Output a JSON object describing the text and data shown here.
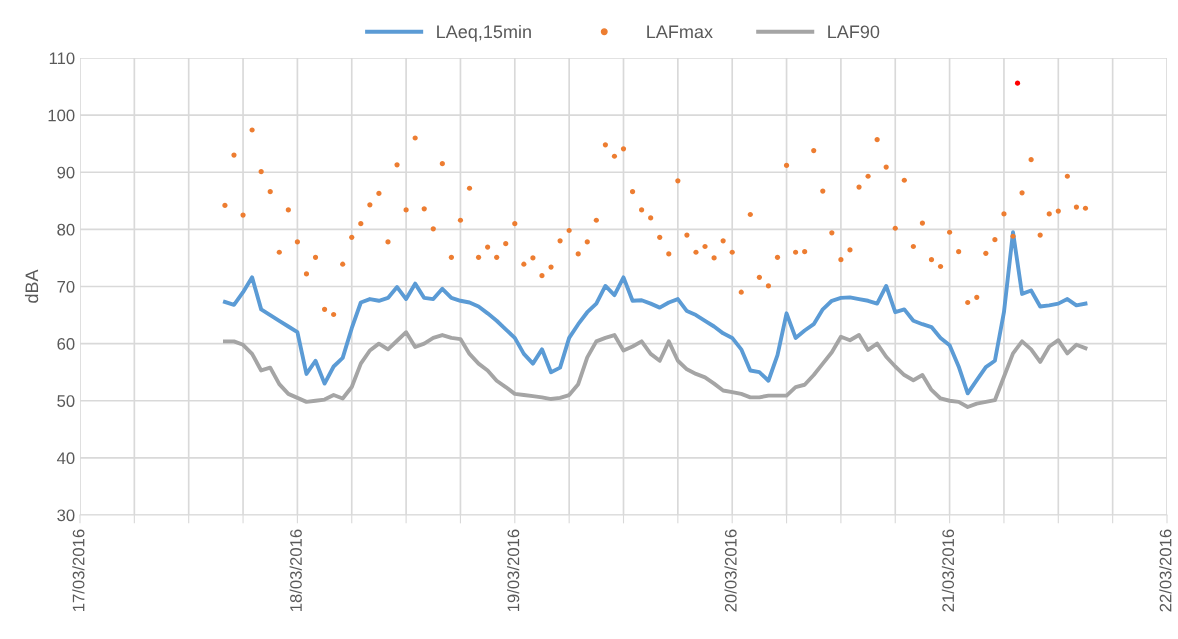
{
  "chart_data": {
    "type": "line",
    "ylabel": "dBA",
    "legend": "top",
    "grid": true,
    "x": [
      "2016-03-17T16:00",
      "2016-03-17T17:00",
      "2016-03-17T18:00",
      "2016-03-17T19:00",
      "2016-03-17T20:00",
      "2016-03-17T21:00",
      "2016-03-17T22:00",
      "2016-03-17T23:00",
      "2016-03-18T00:00",
      "2016-03-18T01:00",
      "2016-03-18T02:00",
      "2016-03-18T03:00",
      "2016-03-18T04:00",
      "2016-03-18T05:00",
      "2016-03-18T06:00",
      "2016-03-18T07:00",
      "2016-03-18T08:00",
      "2016-03-18T09:00",
      "2016-03-18T10:00",
      "2016-03-18T11:00",
      "2016-03-18T12:00",
      "2016-03-18T13:00",
      "2016-03-18T14:00",
      "2016-03-18T15:00",
      "2016-03-18T16:00",
      "2016-03-18T17:00",
      "2016-03-18T18:00",
      "2016-03-18T19:00",
      "2016-03-18T20:00",
      "2016-03-18T21:00",
      "2016-03-18T22:00",
      "2016-03-18T23:00",
      "2016-03-19T00:00",
      "2016-03-19T01:00",
      "2016-03-19T02:00",
      "2016-03-19T03:00",
      "2016-03-19T04:00",
      "2016-03-19T05:00",
      "2016-03-19T06:00",
      "2016-03-19T07:00",
      "2016-03-19T08:00",
      "2016-03-19T09:00",
      "2016-03-19T10:00",
      "2016-03-19T11:00",
      "2016-03-19T12:00",
      "2016-03-19T13:00",
      "2016-03-19T14:00",
      "2016-03-19T15:00",
      "2016-03-19T16:00",
      "2016-03-19T17:00",
      "2016-03-19T18:00",
      "2016-03-19T19:00",
      "2016-03-19T20:00",
      "2016-03-19T21:00",
      "2016-03-19T22:00",
      "2016-03-19T23:00",
      "2016-03-20T00:00",
      "2016-03-20T01:00",
      "2016-03-20T02:00",
      "2016-03-20T03:00",
      "2016-03-20T04:00",
      "2016-03-20T05:00",
      "2016-03-20T06:00",
      "2016-03-20T07:00",
      "2016-03-20T08:00",
      "2016-03-20T09:00",
      "2016-03-20T10:00",
      "2016-03-20T11:00",
      "2016-03-20T12:00",
      "2016-03-20T13:00",
      "2016-03-20T14:00",
      "2016-03-20T15:00",
      "2016-03-20T16:00",
      "2016-03-20T17:00",
      "2016-03-20T18:00",
      "2016-03-20T19:00",
      "2016-03-20T20:00",
      "2016-03-20T21:00",
      "2016-03-20T22:00",
      "2016-03-20T23:00",
      "2016-03-21T00:00",
      "2016-03-21T01:00",
      "2016-03-21T02:00",
      "2016-03-21T03:00",
      "2016-03-21T04:00",
      "2016-03-21T05:00",
      "2016-03-21T06:00",
      "2016-03-21T07:00",
      "2016-03-21T08:00",
      "2016-03-21T09:00",
      "2016-03-21T10:00",
      "2016-03-21T11:00",
      "2016-03-21T12:00",
      "2016-03-21T13:00",
      "2016-03-21T14:00",
      "2016-03-21T15:00"
    ],
    "series": [
      {
        "name": "LAeq,15min",
        "color": "#5b9bd5",
        "marker": "none",
        "line_style": "solid",
        "values": [
          67.3,
          66.8,
          69,
          71.6,
          66,
          65,
          64,
          63,
          62,
          54.7,
          57,
          53,
          56,
          57.5,
          62.7,
          67.2,
          67.8,
          67.5,
          68,
          69.9,
          67.8,
          70.5,
          68,
          67.8,
          69.6,
          68,
          67.5,
          67.2,
          66.5,
          65.3,
          64,
          62.5,
          61,
          58.2,
          56.5,
          59,
          55,
          55.8,
          61,
          63.4,
          65.5,
          67,
          70.1,
          68.5,
          71.6,
          67.5,
          67.6,
          67,
          66.3,
          67.2,
          67.8,
          65.7,
          65,
          64,
          63,
          61.8,
          61,
          59,
          55.3,
          55,
          53.5,
          58,
          65.3,
          61,
          62.3,
          63.4,
          66,
          67.5,
          68,
          68.1,
          67.8,
          67.5,
          67,
          70.1,
          65.5,
          66,
          64,
          63.4,
          62.9,
          61,
          59.7,
          56,
          51.3,
          53.6,
          55.9,
          57,
          65.5,
          79.5,
          68.7,
          69.3,
          66.5,
          66.7,
          67,
          67.8,
          66.7,
          67
        ]
      },
      {
        "name": "LAFmax",
        "type": "scatter",
        "color": "#ed7d31",
        "marker": "circle",
        "values": [
          84.2,
          93,
          82.5,
          97.4,
          90.1,
          86.6,
          76,
          83.4,
          77.8,
          72.2,
          75.1,
          66,
          65.1,
          73.9,
          78.6,
          81,
          84.3,
          86.3,
          77.8,
          91.3,
          83.4,
          96,
          83.6,
          80.1,
          91.5,
          75.1,
          81.6,
          87.2,
          75.1,
          76.9,
          75.1,
          77.5,
          81,
          73.9,
          75,
          71.9,
          73.4,
          78,
          79.8,
          75.7,
          77.8,
          81.6,
          94.8,
          92.8,
          94.1,
          86.6,
          83.4,
          82,
          78.6,
          75.7,
          88.5,
          79,
          76,
          77,
          75,
          78,
          76,
          69,
          82.6,
          71.6,
          70.1,
          75.1,
          91.2,
          76,
          76.1,
          93.8,
          86.7,
          79.4,
          74.7,
          76.4,
          87.4,
          89.3,
          95.7,
          90.9,
          80.2,
          88.6,
          77,
          81.1,
          74.7,
          73.5,
          79.5,
          76.1,
          67.2,
          68.1,
          75.8,
          78.2,
          82.7,
          78.8,
          86.4,
          92.2,
          79,
          82.7,
          83.2,
          89.3,
          83.9,
          83.7
        ]
      },
      {
        "name": "LAF90",
        "color": "#a5a5a5",
        "marker": "none",
        "line_style": "solid",
        "values": [
          60.4,
          60.4,
          59.8,
          58.2,
          55.3,
          55.8,
          52.9,
          51.2,
          50.5,
          49.8,
          50,
          50.2,
          51,
          50.4,
          52.4,
          56.5,
          58.8,
          60,
          59,
          60.5,
          62,
          59.4,
          60,
          61,
          61.5,
          61,
          60.8,
          58.2,
          56.5,
          55.3,
          53.5,
          52.4,
          51.2,
          51,
          50.8,
          50.6,
          50.3,
          50.5,
          51,
          52.9,
          57.6,
          60.4,
          61,
          61.5,
          58.8,
          59.5,
          60.4,
          58.2,
          57,
          60.4,
          57,
          55.5,
          54.7,
          54.1,
          53,
          51.8,
          51.5,
          51.2,
          50.6,
          50.6,
          50.9,
          50.9,
          50.9,
          52.4,
          52.8,
          54.5,
          56.5,
          58.5,
          61.2,
          60.6,
          61.5,
          58.9,
          60,
          57.7,
          56,
          54.5,
          53.6,
          54.5,
          51.9,
          50.4,
          50,
          49.8,
          48.9,
          49.5,
          49.8,
          50.1,
          54.2,
          58.3,
          60.4,
          59,
          56.8,
          59.5,
          60.6,
          58.3,
          59.8,
          59.2
        ]
      },
      {
        "type": "scatter",
        "color": "#ff0000",
        "marker": "circle",
        "x": [
          "2016-03-21T07:30"
        ],
        "values": [
          105.6
        ]
      }
    ],
    "xlim": [
      "2016-03-17",
      "2016-03-22"
    ],
    "xticks": [
      {
        "value": "2016-03-17",
        "label": "17/03/2016"
      },
      {
        "value": "2016-03-17T06:00",
        "label": null
      },
      {
        "value": "2016-03-17T12:00",
        "label": null
      },
      {
        "value": "2016-03-17T18:00",
        "label": null
      },
      {
        "value": "2016-03-18",
        "label": "18/03/2016"
      },
      {
        "value": "2016-03-18T06:00",
        "label": null
      },
      {
        "value": "2016-03-18T12:00",
        "label": null
      },
      {
        "value": "2016-03-18T18:00",
        "label": null
      },
      {
        "value": "2016-03-19",
        "label": "19/03/2016"
      },
      {
        "value": "2016-03-19T06:00",
        "label": null
      },
      {
        "value": "2016-03-19T12:00",
        "label": null
      },
      {
        "value": "2016-03-19T18:00",
        "label": null
      },
      {
        "value": "2016-03-20",
        "label": "20/03/2016"
      },
      {
        "value": "2016-03-20T06:00",
        "label": null
      },
      {
        "value": "2016-03-20T12:00",
        "label": null
      },
      {
        "value": "2016-03-20T18:00",
        "label": null
      },
      {
        "value": "2016-03-21",
        "label": "21/03/2016"
      },
      {
        "value": "2016-03-21T06:00",
        "label": null
      },
      {
        "value": "2016-03-21T12:00",
        "label": null
      },
      {
        "value": "2016-03-21T18:00",
        "label": null
      },
      {
        "value": "2016-03-22",
        "label": "22/03/2016"
      }
    ],
    "ylim": [
      30,
      110
    ],
    "yticks": [
      30,
      40,
      50,
      60,
      70,
      80,
      90,
      100,
      110
    ]
  }
}
